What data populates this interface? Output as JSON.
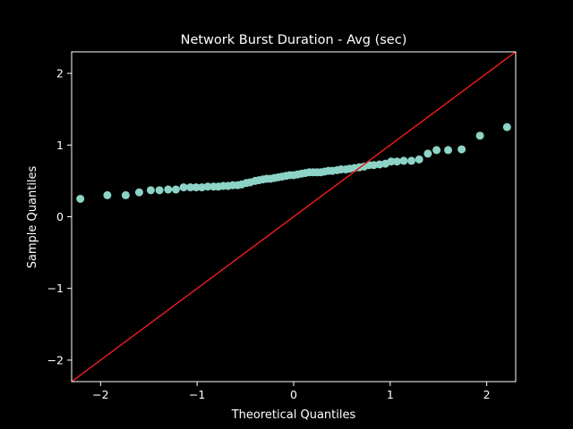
{
  "chart_data": {
    "type": "scatter",
    "title": "Network Burst Duration - Avg (sec)",
    "xlabel": "Theoretical Quantiles",
    "ylabel": "Sample Quantiles",
    "xlim": [
      -2.3,
      2.3
    ],
    "ylim": [
      -2.3,
      2.3
    ],
    "xticks": [
      -2,
      -1,
      0,
      1,
      2
    ],
    "xtick_labels": [
      "−2",
      "−1",
      "0",
      "1",
      "2"
    ],
    "yticks": [
      -2,
      -1,
      0,
      1,
      2
    ],
    "ytick_labels": [
      "−2",
      "−1",
      "0",
      "1",
      "2"
    ],
    "grid": false,
    "colors": {
      "background": "#000000",
      "points": "#8dd3c7",
      "reference_line": "#e41a1c",
      "foreground": "#ffffff"
    },
    "reference_line": {
      "slope": 1,
      "intercept": 0
    },
    "points": [
      [
        -2.21,
        0.25
      ],
      [
        -1.93,
        0.3
      ],
      [
        -1.74,
        0.3
      ],
      [
        -1.6,
        0.34
      ],
      [
        -1.48,
        0.37
      ],
      [
        -1.39,
        0.37
      ],
      [
        -1.3,
        0.38
      ],
      [
        -1.22,
        0.38
      ],
      [
        -1.14,
        0.41
      ],
      [
        -1.07,
        0.41
      ],
      [
        -1.01,
        0.41
      ],
      [
        -0.95,
        0.41
      ],
      [
        -0.89,
        0.42
      ],
      [
        -0.83,
        0.42
      ],
      [
        -0.78,
        0.42
      ],
      [
        -0.73,
        0.43
      ],
      [
        -0.68,
        0.43
      ],
      [
        -0.63,
        0.44
      ],
      [
        -0.58,
        0.44
      ],
      [
        -0.54,
        0.45
      ],
      [
        -0.49,
        0.47
      ],
      [
        -0.45,
        0.48
      ],
      [
        -0.4,
        0.5
      ],
      [
        -0.36,
        0.51
      ],
      [
        -0.32,
        0.52
      ],
      [
        -0.28,
        0.53
      ],
      [
        -0.24,
        0.53
      ],
      [
        -0.2,
        0.54
      ],
      [
        -0.16,
        0.55
      ],
      [
        -0.12,
        0.56
      ],
      [
        -0.08,
        0.57
      ],
      [
        -0.04,
        0.58
      ],
      [
        0.0,
        0.58
      ],
      [
        0.04,
        0.59
      ],
      [
        0.08,
        0.6
      ],
      [
        0.12,
        0.61
      ],
      [
        0.16,
        0.62
      ],
      [
        0.2,
        0.62
      ],
      [
        0.24,
        0.62
      ],
      [
        0.28,
        0.62
      ],
      [
        0.32,
        0.63
      ],
      [
        0.36,
        0.64
      ],
      [
        0.4,
        0.64
      ],
      [
        0.45,
        0.65
      ],
      [
        0.49,
        0.66
      ],
      [
        0.54,
        0.66
      ],
      [
        0.58,
        0.67
      ],
      [
        0.63,
        0.68
      ],
      [
        0.68,
        0.69
      ],
      [
        0.73,
        0.7
      ],
      [
        0.78,
        0.72
      ],
      [
        0.83,
        0.72
      ],
      [
        0.89,
        0.73
      ],
      [
        0.95,
        0.74
      ],
      [
        1.01,
        0.77
      ],
      [
        1.07,
        0.77
      ],
      [
        1.14,
        0.78
      ],
      [
        1.22,
        0.78
      ],
      [
        1.3,
        0.8
      ],
      [
        1.39,
        0.88
      ],
      [
        1.48,
        0.93
      ],
      [
        1.6,
        0.93
      ],
      [
        1.74,
        0.94
      ],
      [
        1.93,
        1.13
      ],
      [
        2.21,
        1.25
      ]
    ]
  }
}
